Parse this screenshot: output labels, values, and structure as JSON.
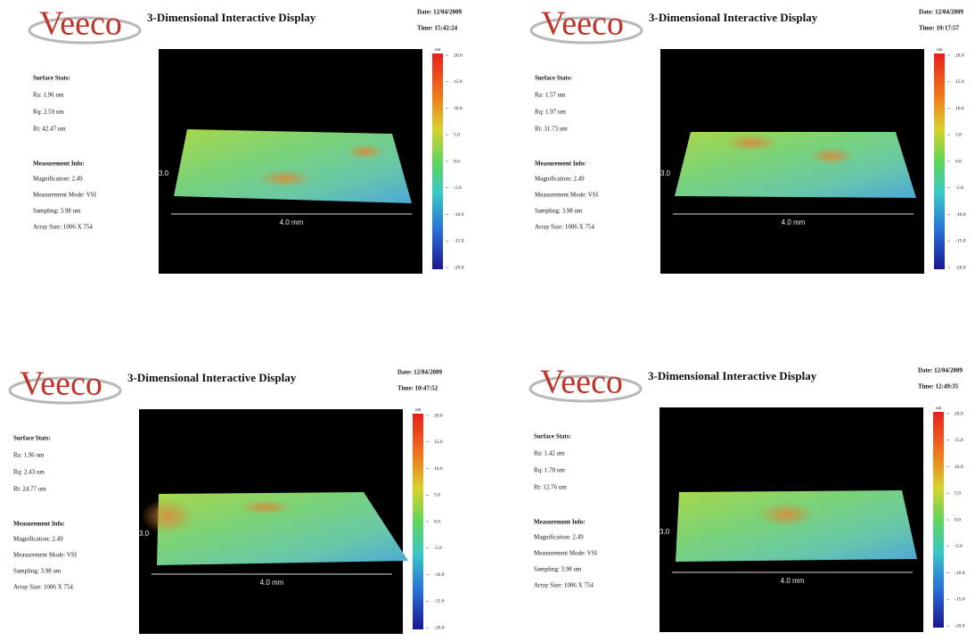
{
  "panels": [
    {
      "logo": "Veeco",
      "title": "3-Dimensional Interactive Display",
      "date": "Date: 12/04/2009",
      "time": "Time: 15:42:24",
      "surface_stats_heading": "Surface Stats:",
      "surface_stats": [
        "Ra: 1.96 um",
        "Rq: 2.59 um",
        "Rt: 42.47 um"
      ],
      "measurement_heading": "Measurement Info:",
      "measurement_info": [
        "Magnification: 2.49",
        "Measurement Mode: VSI",
        "Sampling: 3.98 um",
        "Array Size: 1006 X 754"
      ],
      "colorbar_unit": "um",
      "colorbar_ticks": [
        "20.0",
        "15.0",
        "10.0",
        "5.0",
        "0.0",
        "-5.0",
        "-10.0",
        "-15.0",
        "-20.0"
      ],
      "x_axis_label": "4.0 mm",
      "y_axis_label": "3.0"
    },
    {
      "logo": "Veeco",
      "title": "3-Dimensional Interactive Display",
      "date": "Date: 12/04/2009",
      "time": "Time: 10:17:57",
      "surface_stats_heading": "Surface Stats:",
      "surface_stats": [
        "Ra: 1.57 um",
        "Rq: 1.97 um",
        "Rt: 31.73 um"
      ],
      "measurement_heading": "Measurement Info:",
      "measurement_info": [
        "Magnification: 2.49",
        "Measurement Mode: VSI",
        "Sampling: 3.98 um",
        "Array Size: 1006 X 754"
      ],
      "colorbar_unit": "um",
      "colorbar_ticks": [
        "20.0",
        "15.0",
        "10.0",
        "5.0",
        "0.0",
        "-5.0",
        "-10.0",
        "-15.0",
        "-20.0"
      ],
      "x_axis_label": "4.0 mm",
      "y_axis_label": "3.0"
    },
    {
      "logo": "Veeco",
      "title": "3-Dimensional Interactive Display",
      "date": "Date: 12/04/2009",
      "time": "Time: 10:47:52",
      "surface_stats_heading": "Surface Stats:",
      "surface_stats": [
        "Ra: 1.96 um",
        "Rq: 2.43 um",
        "Rt: 24.77 um"
      ],
      "measurement_heading": "Measurement Info:",
      "measurement_info": [
        "Magnification: 2.49",
        "Measurement Mode: VSI",
        "Sampling: 3.98 um",
        "Array Size: 1006 X 754"
      ],
      "colorbar_unit": "um",
      "colorbar_ticks": [
        "20.0",
        "15.0",
        "10.0",
        "5.0",
        "0.0",
        "-5.0",
        "-10.0",
        "-15.0",
        "-20.0"
      ],
      "x_axis_label": "4.0 mm",
      "y_axis_label": "3.0"
    },
    {
      "logo": "Veeco",
      "title": "3-Dimensional Interactive Display",
      "date": "Date: 12/04/2009",
      "time": "Time: 12:49:35",
      "surface_stats_heading": "Surface Stats:",
      "surface_stats": [
        "Ra: 1.42 um",
        "Rq: 1.78 um",
        "Rt: 12.76 um"
      ],
      "measurement_heading": "Measurement Info:",
      "measurement_info": [
        "Magnification: 2.49",
        "Measurement Mode: VSI",
        "Sampling: 3.98 um",
        "Array Size: 1006 X 754"
      ],
      "colorbar_unit": "um",
      "colorbar_ticks": [
        "20.0",
        "15.0",
        "10.0",
        "5.0",
        "0.0",
        "-5.0",
        "-10.0",
        "-15.0",
        "-20.0"
      ],
      "x_axis_label": "4.0 mm",
      "y_axis_label": "3.0"
    }
  ]
}
